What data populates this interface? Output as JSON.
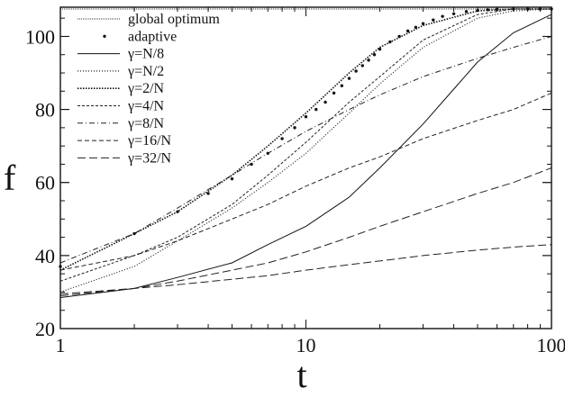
{
  "chart_data": {
    "type": "line",
    "title": "",
    "xlabel": "t",
    "ylabel": "f",
    "xscale": "log",
    "xlim": [
      1,
      100
    ],
    "ylim": [
      20,
      108
    ],
    "x_ticks": [
      1,
      10,
      100
    ],
    "x_tick_labels": [
      "1",
      "10",
      "100"
    ],
    "y_ticks": [
      20,
      40,
      60,
      80,
      100
    ],
    "y_tick_labels": [
      "20",
      "40",
      "60",
      "80",
      "100"
    ],
    "grid": false,
    "legend_position": "top-left",
    "series": [
      {
        "name": "global optimum",
        "style": "dotted-thin",
        "x": [
          1,
          100
        ],
        "y": [
          107.5,
          107.5
        ]
      },
      {
        "name": "adaptive",
        "style": "points",
        "x": [
          1,
          2,
          3,
          4,
          5,
          6,
          7,
          8,
          9,
          10,
          11,
          12,
          13,
          14,
          15,
          16,
          17,
          18,
          19,
          20,
          22,
          24,
          26,
          28,
          30,
          33,
          36,
          40,
          45,
          50,
          55,
          60,
          70,
          80,
          90,
          100
        ],
        "y": [
          37,
          46,
          52,
          57,
          61,
          65,
          68,
          72,
          75,
          78,
          80,
          82,
          84.5,
          86.5,
          88.5,
          90.5,
          92,
          93.5,
          95,
          96.5,
          98.5,
          100,
          101.5,
          102.5,
          103.5,
          104.5,
          105.5,
          106.2,
          106.8,
          107.1,
          107.3,
          107.4,
          107.5,
          107.5,
          107.5,
          107.5
        ]
      },
      {
        "name": "γ=N/8",
        "style": "solid",
        "x": [
          1,
          2,
          3,
          5,
          7,
          10,
          15,
          20,
          30,
          50,
          70,
          100
        ],
        "y": [
          28.5,
          31,
          34,
          38,
          43,
          48,
          56,
          64,
          76,
          93,
          101,
          106
        ]
      },
      {
        "name": "γ=N/2",
        "style": "dotted",
        "x": [
          1,
          2,
          3,
          5,
          7,
          10,
          15,
          20,
          30,
          50,
          70,
          100
        ],
        "y": [
          30,
          37,
          44,
          53,
          60,
          68,
          79,
          87,
          97,
          105,
          107,
          107.5
        ]
      },
      {
        "name": "γ=2/N",
        "style": "dotted-dense",
        "x": [
          1,
          2,
          3,
          5,
          7,
          10,
          15,
          20,
          30,
          50,
          70,
          100
        ],
        "y": [
          36,
          46,
          52,
          62,
          70,
          79,
          90,
          97,
          103,
          107,
          107.5,
          107.5
        ]
      },
      {
        "name": "γ=4/N",
        "style": "dashed-short",
        "x": [
          1,
          2,
          3,
          5,
          7,
          10,
          15,
          20,
          30,
          50,
          70,
          100
        ],
        "y": [
          33,
          40,
          45,
          54,
          62,
          71,
          82,
          89,
          99,
          106,
          107.5,
          107.5
        ]
      },
      {
        "name": "γ=8/N",
        "style": "dash-dot",
        "x": [
          1,
          2,
          3,
          5,
          7,
          10,
          15,
          20,
          30,
          50,
          70,
          100
        ],
        "y": [
          38,
          46,
          53,
          62,
          68,
          74,
          80,
          84,
          89,
          94,
          97,
          100
        ]
      },
      {
        "name": "γ=16/N",
        "style": "dashed",
        "x": [
          1,
          2,
          3,
          5,
          7,
          10,
          15,
          20,
          30,
          50,
          70,
          100
        ],
        "y": [
          36,
          40,
          44,
          50,
          54,
          59,
          64,
          67,
          72,
          77,
          80,
          84.5
        ]
      },
      {
        "name": "γ=32/N",
        "style": "dashed-long",
        "x": [
          1,
          2,
          3,
          5,
          7,
          10,
          15,
          20,
          30,
          50,
          70,
          100
        ],
        "y": [
          29,
          31,
          33,
          36,
          38,
          41,
          45,
          48,
          52,
          57,
          60,
          64
        ]
      },
      {
        "name": "",
        "style": "dashed-long",
        "x": [
          1,
          2,
          3,
          5,
          7,
          10,
          15,
          20,
          30,
          50,
          70,
          100
        ],
        "y": [
          29.5,
          31,
          32,
          33.5,
          34.5,
          36,
          37.5,
          38.5,
          40,
          41.5,
          42.3,
          43
        ]
      }
    ]
  }
}
